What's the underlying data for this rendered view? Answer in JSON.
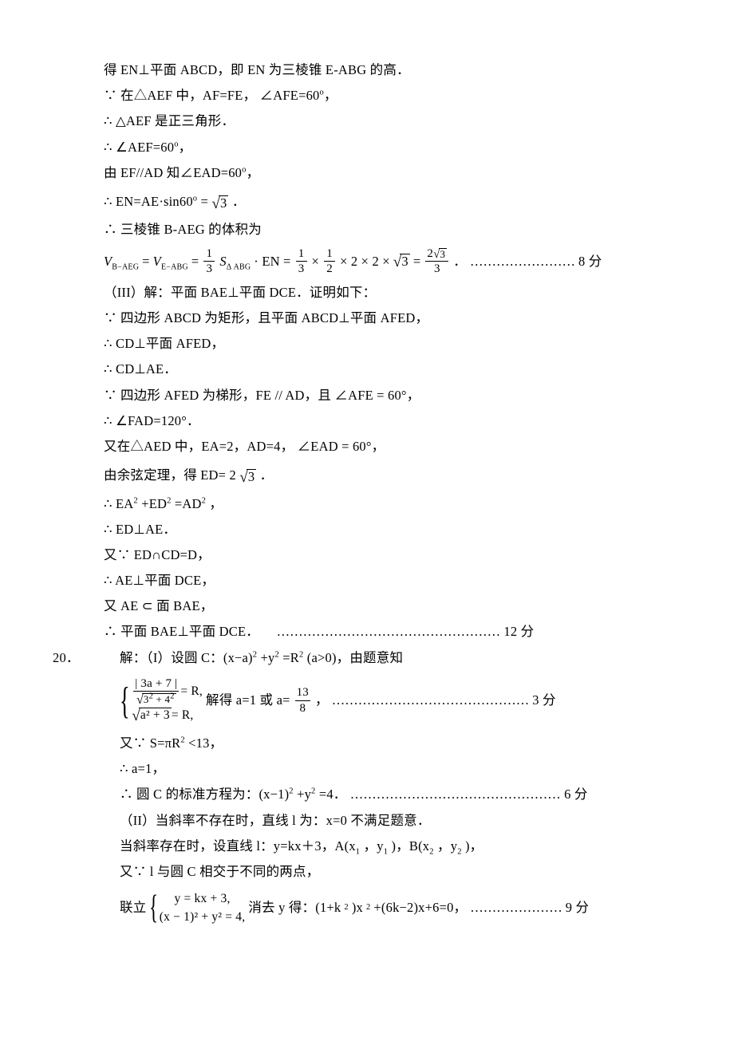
{
  "colors": {
    "text": "#000000",
    "background": "#ffffff"
  },
  "typography": {
    "base_size_pt": 12.5,
    "line_height": 1.95,
    "font": "Times New Roman / SimSun"
  },
  "l01": "得 EN⊥平面 ABCD，即 EN 为三棱锥 E-ABG 的高．",
  "l02_a": "∵ 在△AEF 中，AF=FE， ∠AFE=60",
  "l02_b": "o",
  "l02_c": "，",
  "l03": "∴ △AEF 是正三角形．",
  "l04_a": "∴ ∠AEF=60",
  "l04_b": "o",
  "l04_c": "，",
  "l05_a": "由 EF//AD 知∠EAD=60",
  "l05_b": "o",
  "l05_c": "，",
  "l06_a": "∴  EN=AE·sin60",
  "l06_b": "o",
  "l06_c": " = ",
  "l06_sqrt": "3",
  "l06_d": " ．",
  "l07": "∴ 三棱锥 B-AEG 的体积为",
  "vf_lhs1": "V",
  "vf_sub1": "B−AEG",
  "vf_eq1": " = ",
  "vf_lhs2": "V",
  "vf_sub2": "E−ABG",
  "vf_eq2": " = ",
  "vf_f1n": "1",
  "vf_f1d": "3",
  "vf_S": "S",
  "vf_Ssub": "Δ ABG",
  "vf_dot": " · EN = ",
  "vf_f2n": "1",
  "vf_f2d": "3",
  "vf_x1": "×",
  "vf_f3n": "1",
  "vf_f3d": "2",
  "vf_tail1": "× 2 × 2 ×",
  "vf_sqrt": "3",
  "vf_eq3": " = ",
  "vf_f4n_a": "2",
  "vf_f4n_sqrt": "3",
  "vf_f4d": "3",
  "vf_period": " ．",
  "vf_dots": "……………………",
  "vf_pts": "8 分",
  "p3_head": "（III）解：平面 BAE⊥平面 DCE．证明如下：",
  "p3_01": "∵ 四边形 ABCD 为矩形，且平面 ABCD⊥平面 AFED，",
  "p3_02": "∴ CD⊥平面 AFED，",
  "p3_03": "∴ CD⊥AE．",
  "p3_04": "∵ 四边形 AFED 为梯形，FE // AD，且 ∠AFE = 60°，",
  "p3_05": "∴ ∠FAD=120°．",
  "p3_06": "又在△AED 中，EA=2，AD=4， ∠EAD = 60°，",
  "p3_07_a": "由余弦定理，得 ED= 2",
  "p3_07_sqrt": "3",
  "p3_07_b": " ．",
  "p3_08_a": "∴ EA",
  "p3_08_b": "+ED",
  "p3_08_c": "=AD",
  "p3_08_d": "，",
  "p3_09": "∴ ED⊥AE．",
  "p3_10": "又∵ ED∩CD=D，",
  "p3_11": "∴ AE⊥平面 DCE，",
  "p3_12": "又 AE ⊂ 面 BAE，",
  "p3_13": "∴ 平面 BAE⊥平面 DCE．",
  "p3_dots": "……………………………………………",
  "p3_pts": "12 分",
  "q20_num": "20．",
  "q20_head_a": "解：（I）设圆 C：(x−a)",
  "q20_head_b": "+y",
  "q20_head_c": "=R",
  "q20_head_d": "(a>0)，由题意知",
  "sys1_l1_num": "| 3a + 7 |",
  "sys1_l1_den_a": "3",
  "sys1_l1_den_b": " + 4",
  "sys1_l1_rhs": " = R,",
  "sys1_l2_body": "a² + 3",
  "sys1_l2_rhs": " = R,",
  "sys1_mid_a": "  解得 a=1 或 a=",
  "sys1_frac_n": "13",
  "sys1_frac_d": "8",
  "sys1_mid_b": "，",
  "sys1_dots": "  ………………………………………",
  "sys1_pts": " 3 分",
  "q20_02_a": "又∵ S=πR",
  "q20_02_b": "<13，",
  "q20_03": "∴  a=1，",
  "q20_04_a": "∴ 圆 C 的标准方程为：(x−1)",
  "q20_04_b": "+y",
  "q20_04_c": "=4．",
  "q20_04_dots": "  …………………………………………",
  "q20_04_pts": " 6 分",
  "q20_05": "（II）当斜率不存在时，直线 l 为：x=0 不满足题意．",
  "q20_06_a": "当斜率存在时，设直线 l：y=kx＋3，A(x",
  "q20_06_b": "，y",
  "q20_06_c": ")，B(x",
  "q20_06_d": "，y",
  "q20_06_e": ")，",
  "q20_07": "又∵ l 与圆 C 相交于不同的两点，",
  "q20_08_pre": "联立 ",
  "sys2_l1": "y = kx + 3,",
  "sys2_l2": "(x − 1)² + y² = 4,",
  "q20_08_mid_a": " 消去 y 得：(1+k",
  "q20_08_mid_b": ")x",
  "q20_08_mid_c": "+(6k−2)x+6=0，",
  "q20_08_dots": " …………………",
  "q20_08_pts": "9 分"
}
